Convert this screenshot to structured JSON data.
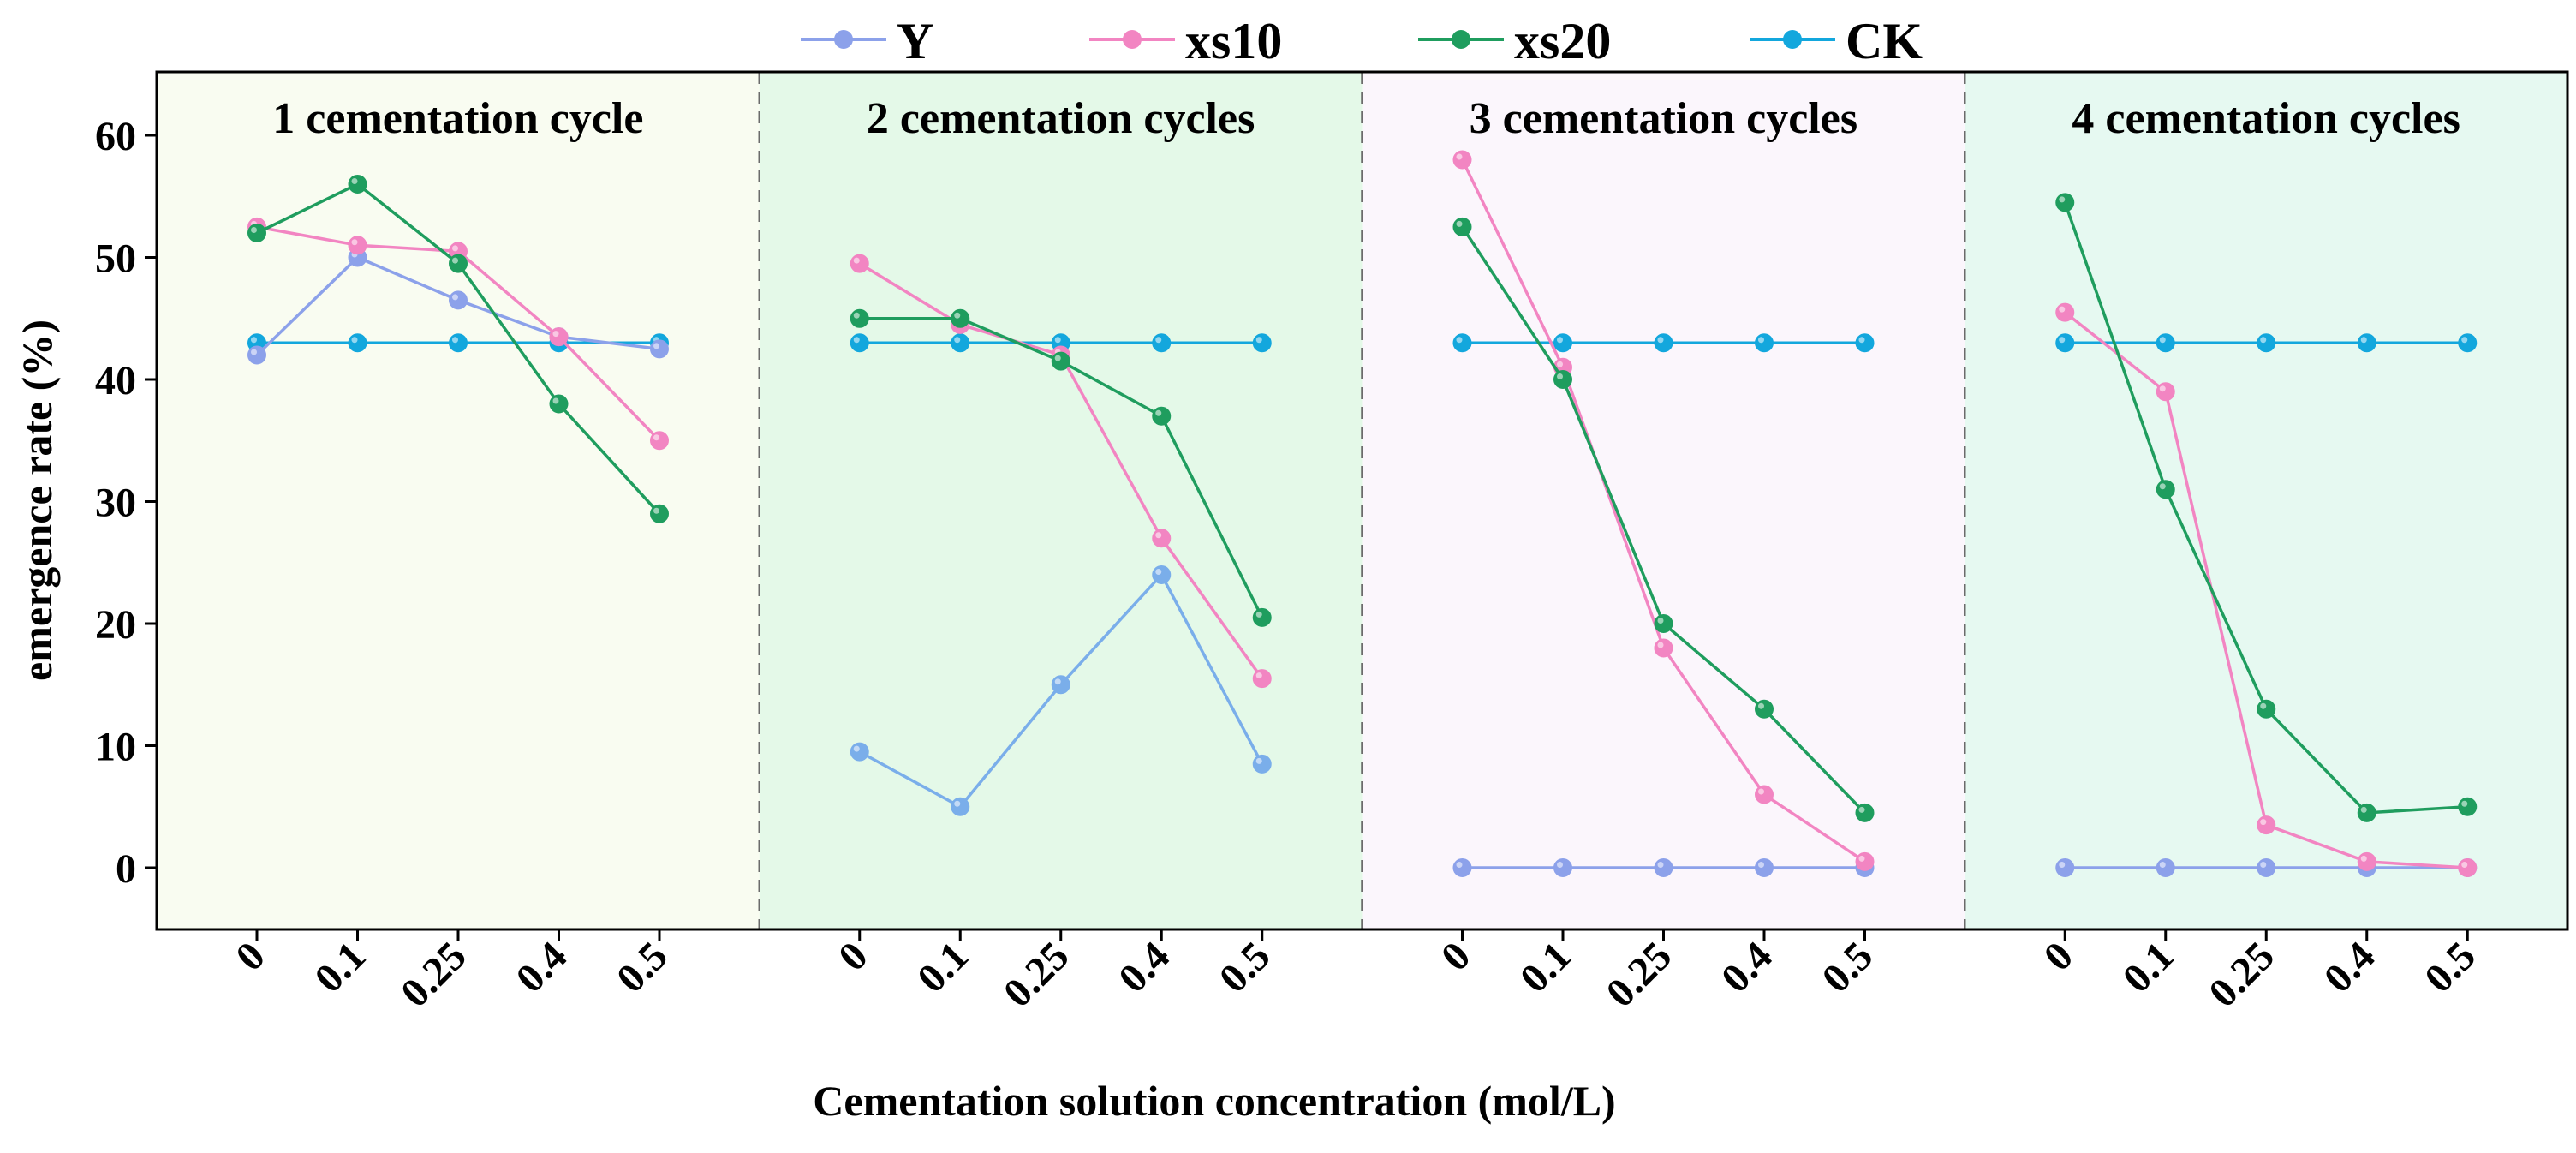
{
  "chart_data": {
    "type": "line",
    "title": "",
    "xlabel": "Cementation solution concentration (mol/L)",
    "ylabel": "emergence rate (%)",
    "ylim": [
      -5,
      65
    ],
    "yticks": [
      0,
      10,
      20,
      30,
      40,
      50,
      60
    ],
    "categories": [
      "0",
      "0.1",
      "0.25",
      "0.4",
      "0.5"
    ],
    "legend": {
      "position": "top",
      "entries": [
        {
          "name": "Y",
          "color": "#8ca1ea"
        },
        {
          "name": "xs10",
          "color": "#f285c2"
        },
        {
          "name": "xs20",
          "color": "#1f9d5e"
        },
        {
          "name": "CK",
          "color": "#13a7dd"
        }
      ]
    },
    "panels": [
      {
        "label": "1 cementation cycle",
        "background": "#f9fcf1",
        "series": [
          {
            "name": "Y",
            "color": "#8ca1ea",
            "values": [
              42,
              50,
              46.5,
              43.5,
              42.5
            ]
          },
          {
            "name": "xs10",
            "color": "#f285c2",
            "values": [
              52.5,
              51,
              50.5,
              43.5,
              35
            ]
          },
          {
            "name": "xs20",
            "color": "#1f9d5e",
            "values": [
              52,
              56,
              49.5,
              38,
              29
            ]
          },
          {
            "name": "CK",
            "color": "#13a7dd",
            "values": [
              43,
              43,
              43,
              43,
              43
            ]
          }
        ]
      },
      {
        "label": "2 cementation cycles",
        "background": "#e4f9e8",
        "series": [
          {
            "name": "Y",
            "color": "#7aaeea",
            "values": [
              9.5,
              5,
              15,
              24,
              8.5
            ]
          },
          {
            "name": "xs10",
            "color": "#f285c2",
            "values": [
              49.5,
              44.5,
              42,
              27,
              15.5
            ]
          },
          {
            "name": "xs20",
            "color": "#1f9d5e",
            "values": [
              45,
              45,
              41.5,
              37,
              20.5
            ]
          },
          {
            "name": "CK",
            "color": "#13a7dd",
            "values": [
              43,
              43,
              43,
              43,
              43
            ]
          }
        ]
      },
      {
        "label": "3 cementation cycles",
        "background": "#fbf6fc",
        "series": [
          {
            "name": "Y",
            "color": "#8ca1ea",
            "values": [
              0,
              0,
              0,
              0,
              0
            ]
          },
          {
            "name": "xs10",
            "color": "#f285c2",
            "values": [
              58,
              41,
              18,
              6,
              0.5
            ]
          },
          {
            "name": "xs20",
            "color": "#1f9d5e",
            "values": [
              52.5,
              40,
              20,
              13,
              4.5
            ]
          },
          {
            "name": "CK",
            "color": "#13a7dd",
            "values": [
              43,
              43,
              43,
              43,
              43
            ]
          }
        ]
      },
      {
        "label": "4 cementation cycles",
        "background": "#e6f9f1",
        "series": [
          {
            "name": "Y",
            "color": "#8ca1ea",
            "values": [
              0,
              0,
              0,
              0,
              0
            ]
          },
          {
            "name": "xs10",
            "color": "#f285c2",
            "values": [
              45.5,
              39,
              3.5,
              0.5,
              0
            ]
          },
          {
            "name": "xs20",
            "color": "#1f9d5e",
            "values": [
              54.5,
              31,
              13,
              4.5,
              5
            ]
          },
          {
            "name": "CK",
            "color": "#13a7dd",
            "values": [
              43,
              43,
              43,
              43,
              43
            ]
          }
        ]
      }
    ]
  }
}
